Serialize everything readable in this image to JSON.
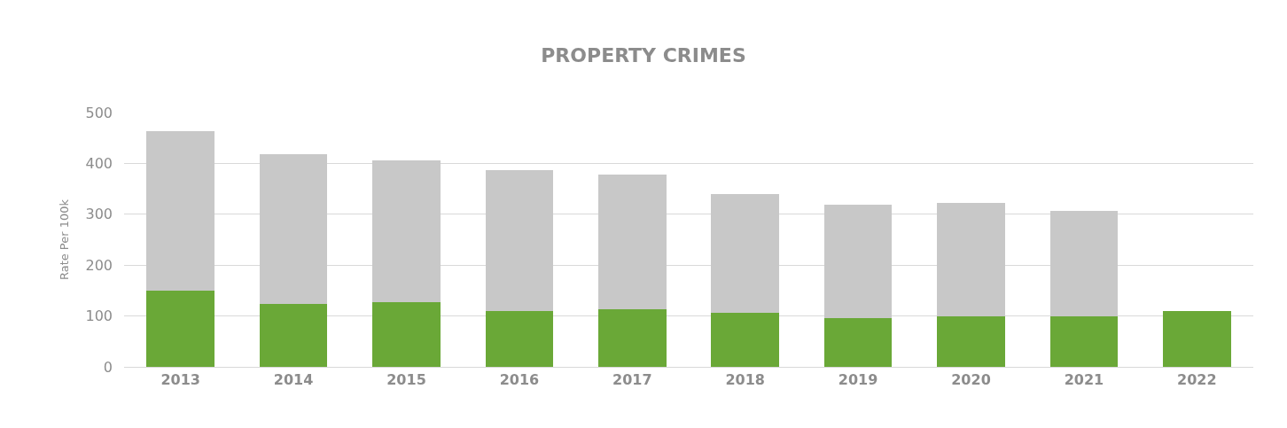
{
  "chart_data": {
    "type": "bar",
    "title": "PROPERTY CRIMES",
    "ylabel": "Rate Per 100k",
    "categories": [
      "2013",
      "2014",
      "2015",
      "2016",
      "2017",
      "2018",
      "2019",
      "2020",
      "2021",
      "2022"
    ],
    "stacked": true,
    "series": [
      {
        "color": "#6aa837",
        "values": [
          149,
          124,
          128,
          109,
          114,
          106,
          95,
          100,
          100,
          109
        ]
      },
      {
        "color": "#c8c8c8",
        "values": [
          314,
          294,
          278,
          277,
          264,
          233,
          224,
          222,
          206,
          null
        ]
      }
    ],
    "ylim": [
      0,
      500
    ],
    "yticks": [
      0,
      100,
      200,
      300,
      400,
      500
    ],
    "grid": "y",
    "legend": false
  }
}
